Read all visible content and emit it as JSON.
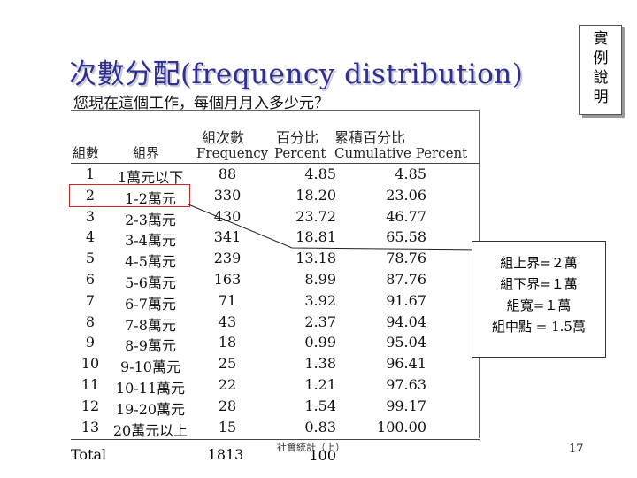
{
  "slide": {
    "title": "次數分配(frequency distribution)",
    "side_box_text": "實例說明",
    "question": "您現在這個工作，每個月月入多少元？",
    "page_number": "17",
    "footnote": "社會統計（上）"
  },
  "table": {
    "headers_top": [
      "組次數",
      "百分比",
      "累積百分比"
    ],
    "headers": [
      "組數",
      "組界",
      "Frequency",
      "Percent",
      "Cumulative Percent"
    ],
    "rows": [
      [
        "1",
        "1萬元以下",
        "88",
        "4.85",
        "4.85"
      ],
      [
        "2",
        "1-2萬元",
        "330",
        "18.20",
        "23.06"
      ],
      [
        "3",
        "2-3萬元",
        "430",
        "23.72",
        "46.77"
      ],
      [
        "4",
        "3-4萬元",
        "341",
        "18.81",
        "65.58"
      ],
      [
        "5",
        "4-5萬元",
        "239",
        "13.18",
        "78.76"
      ],
      [
        "6",
        "5-6萬元",
        "163",
        "8.99",
        "87.76"
      ],
      [
        "7",
        "6-7萬元",
        "71",
        "3.92",
        "91.67"
      ],
      [
        "8",
        "7-8萬元",
        "43",
        "2.37",
        "94.04"
      ],
      [
        "9",
        "8-9萬元",
        "18",
        "0.99",
        "95.04"
      ],
      [
        "10",
        "9-10萬元",
        "25",
        "1.38",
        "96.41"
      ],
      [
        "11",
        "10-11萬元",
        "22",
        "1.21",
        "97.63"
      ],
      [
        "12",
        "19-20萬元",
        "28",
        "1.54",
        "99.17"
      ],
      [
        "13",
        "20萬元以上",
        "15",
        "0.83",
        "100.00"
      ]
    ],
    "total": {
      "label": "Total",
      "frequency": "1813",
      "percent": "100"
    }
  },
  "annotation": {
    "lines": [
      "組上界=２萬",
      "組下界=１萬",
      "組寬=１萬",
      "組中點 = 1.5萬"
    ]
  },
  "colors": {
    "title": "#2f2f8f",
    "highlight_border": "#dd2222"
  }
}
